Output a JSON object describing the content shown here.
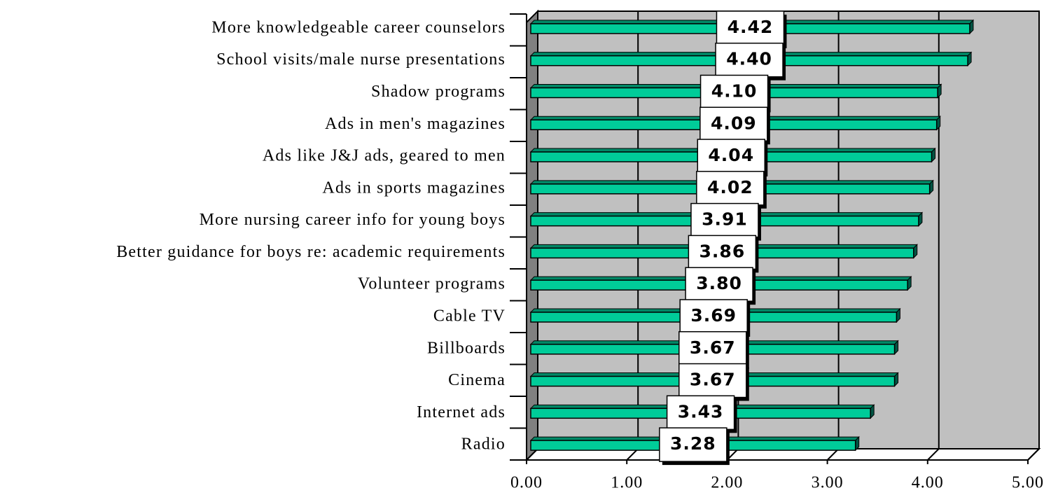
{
  "chart_data": {
    "type": "bar",
    "orientation": "horizontal",
    "categories": [
      "More knowledgeable career counselors",
      "School visits/male nurse presentations",
      "Shadow programs",
      "Ads in men's magazines",
      "Ads like J&J ads, geared to men",
      "Ads in sports magazines",
      "More nursing career info for young boys",
      "Better guidance for boys re: academic requirements",
      "Volunteer programs",
      "Cable TV",
      "Billboards",
      "Cinema",
      "Internet ads",
      "Radio"
    ],
    "values": [
      4.42,
      4.4,
      4.1,
      4.09,
      4.04,
      4.02,
      3.91,
      3.86,
      3.8,
      3.69,
      3.67,
      3.67,
      3.43,
      3.28
    ],
    "value_labels": [
      "4.42",
      "4.40",
      "4.10",
      "4.09",
      "4.04",
      "4.02",
      "3.91",
      "3.86",
      "3.80",
      "3.69",
      "3.67",
      "3.67",
      "3.43",
      "3.28"
    ],
    "color": "#00cc99",
    "xlim": [
      0,
      5
    ],
    "xticks": [
      {
        "value": 0,
        "label": "0.00"
      },
      {
        "value": 1,
        "label": "1.00"
      },
      {
        "value": 2,
        "label": "2.00"
      },
      {
        "value": 3,
        "label": "3.00"
      },
      {
        "value": 4,
        "label": "4.00"
      },
      {
        "value": 5,
        "label": "5.00"
      }
    ],
    "grid": true
  }
}
